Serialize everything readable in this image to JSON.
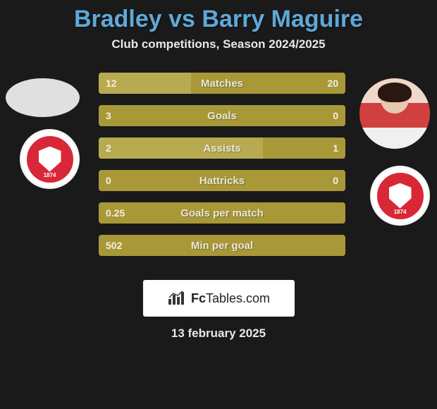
{
  "header": {
    "title": "Bradley vs Barry Maguire",
    "subtitle": "Club competitions, Season 2024/2025"
  },
  "left_player": {
    "photo_shape": "ellipse",
    "photo_bg": "#e8e8e8",
    "club_badge": {
      "bg": "#ffffff",
      "inner": "#d82838",
      "year": "1874",
      "shield_color": "#ffffff"
    }
  },
  "right_player": {
    "photo_shape": "circle",
    "photo_bg": "#f0d8c8",
    "club_badge": {
      "bg": "#ffffff",
      "inner": "#d82838",
      "year": "1874",
      "shield_color": "#ffffff"
    }
  },
  "stats": {
    "bar_bg": "#a89838",
    "bar_fill": "#b8aa50",
    "text_color": "#f0f0e0",
    "rows": [
      {
        "label": "Matches",
        "left": "12",
        "right": "20",
        "left_pct": 37.5,
        "right_pct": 62.5,
        "fill_side": "left"
      },
      {
        "label": "Goals",
        "left": "3",
        "right": "0",
        "left_pct": 100,
        "right_pct": 0,
        "fill_side": "right"
      },
      {
        "label": "Assists",
        "left": "2",
        "right": "1",
        "left_pct": 66.7,
        "right_pct": 33.3,
        "fill_side": "left"
      },
      {
        "label": "Hattricks",
        "left": "0",
        "right": "0",
        "left_pct": 0,
        "right_pct": 0,
        "fill_side": "none"
      },
      {
        "label": "Goals per match",
        "left": "0.25",
        "right": "",
        "left_pct": 100,
        "right_pct": 0,
        "fill_side": "none"
      },
      {
        "label": "Min per goal",
        "left": "502",
        "right": "",
        "left_pct": 100,
        "right_pct": 0,
        "fill_side": "none"
      }
    ]
  },
  "footer": {
    "brand_prefix": "Fc",
    "brand_suffix": "Tables.com",
    "date": "13 february 2025"
  },
  "colors": {
    "page_bg": "#1a1a1a",
    "title": "#5fa8d9",
    "text": "#e8e8e8"
  }
}
